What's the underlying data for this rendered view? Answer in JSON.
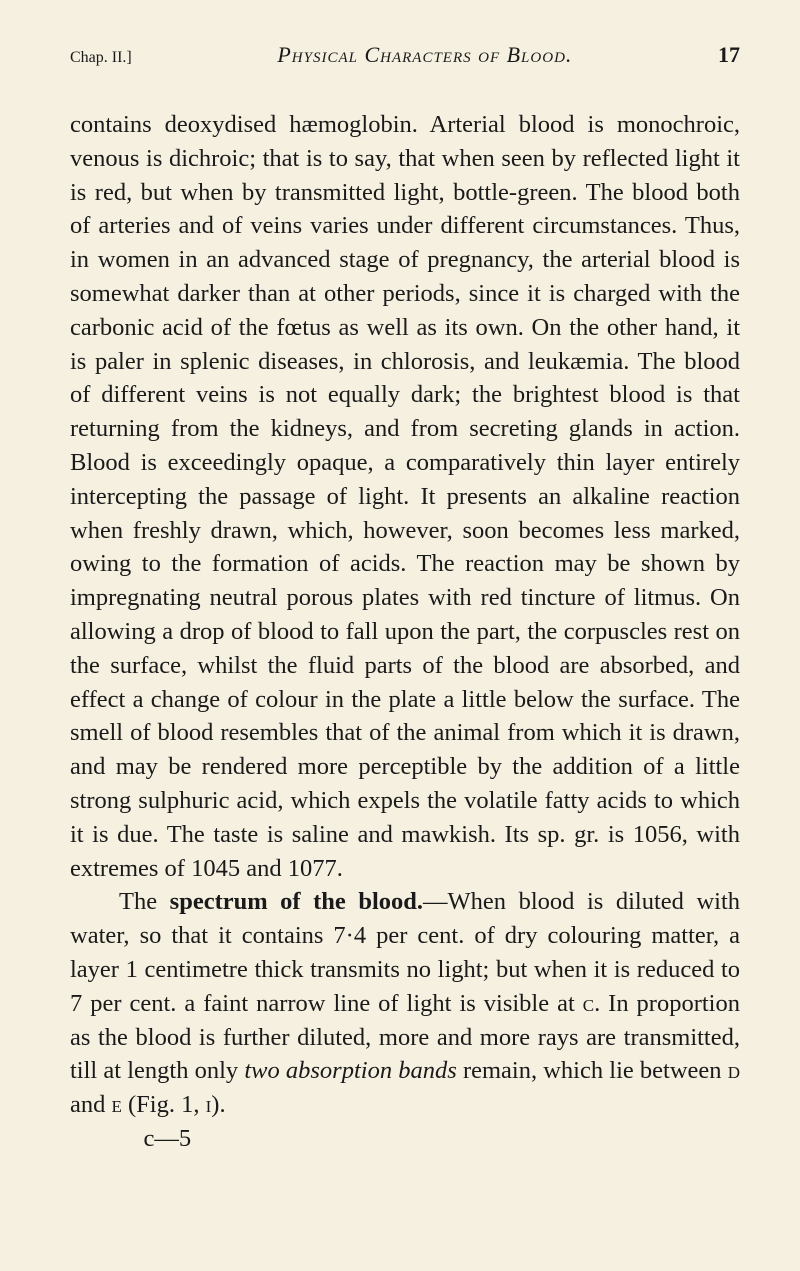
{
  "header": {
    "chapter": "Chap. II.]",
    "runningTitle": "Physical Characters of Blood.",
    "pageNumber": "17"
  },
  "paragraphs": {
    "p1_part1": "contains deoxydised hæmoglobin. Arterial blood is monochroic, venous is dichroic; that is to say, that when seen by reflected light it is red, but when by transmitted light, bottle-green. The blood both of arteries and of veins varies under different circumstances. Thus, in women in an advanced stage of pregnancy, the arterial blood is somewhat darker than at other periods, since it is charged with the carbonic acid of the fœtus as well as its own. On the other hand, it is paler in splenic diseases, in chlorosis, and leukæmia. The blood of different veins is not equally dark; the brightest blood is that returning from the kidneys, and from secreting glands in action. Blood is exceedingly opaque, a comparatively thin layer entirely intercepting the passage of light. It presents an alkaline reaction when freshly drawn, which, however, soon becomes less marked, owing to the formation of acids. The reaction may be shown by impregnating neutral porous plates with red tincture of litmus. On allowing a drop of blood to fall upon the part, the corpuscles rest on the surface, whilst the fluid parts of the blood are absorbed, and effect a change of colour in the plate a little below the surface. The smell of blood resembles that of the animal from which it is drawn, and may be rendered more perceptible by the addition of a little strong sulphuric acid, which expels the volatile fatty acids to which it is due. The taste is saline and mawkish. Its sp. gr. is 1056, with extremes of 1045 and 1077.",
    "p2_lead": "The ",
    "p2_bold": "spectrum of the blood.",
    "p2_rest1": "—When blood is diluted with water, so that it contains 7·4 per cent. of dry colouring matter, a layer 1 centimetre thick transmits no light; but when it is reduced to 7 per cent. a faint narrow line of light is visible at ",
    "p2_sc1": "c",
    "p2_rest2": ". In proportion as the blood is further diluted, more and more rays are transmitted, till at length only ",
    "p2_italic": "two absorption bands",
    "p2_rest3": " remain, which lie between ",
    "p2_sc2": "d",
    "p2_rest4": " and ",
    "p2_sc3": "e",
    "p2_rest5": " (Fig. 1, ",
    "p2_sc4": "i",
    "p2_rest6": ")."
  },
  "signature": "c—5"
}
